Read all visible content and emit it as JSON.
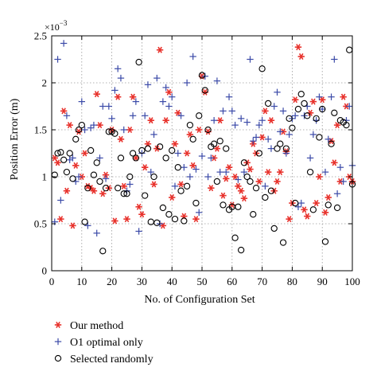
{
  "chart_data": {
    "type": "scatter",
    "title": "",
    "xlabel": "No. of Configuration Set",
    "ylabel": "Position Error (m)",
    "y_multiplier_label": "×10",
    "y_multiplier_exponent": "−3",
    "xlim": [
      0,
      100
    ],
    "ylim": [
      0,
      2.5
    ],
    "xticks": [
      "0",
      "10",
      "20",
      "30",
      "40",
      "50",
      "60",
      "70",
      "80",
      "90",
      "100"
    ],
    "yticks": [
      "0",
      "0.5",
      "1",
      "1.5",
      "2",
      "2.5"
    ],
    "grid": true,
    "legend_position": "bottom-left, below plot",
    "series": [
      {
        "name": "Our method",
        "marker": "asterisk",
        "color": "#e8322c",
        "x": [
          1,
          2,
          3,
          4,
          5,
          6,
          7,
          8,
          9,
          10,
          11,
          12,
          13,
          14,
          15,
          16,
          17,
          18,
          19,
          20,
          21,
          22,
          23,
          24,
          25,
          26,
          27,
          28,
          29,
          30,
          31,
          32,
          33,
          34,
          35,
          36,
          37,
          38,
          39,
          40,
          41,
          42,
          43,
          44,
          45,
          46,
          47,
          48,
          49,
          50,
          51,
          52,
          53,
          54,
          55,
          56,
          57,
          58,
          59,
          60,
          61,
          62,
          63,
          64,
          65,
          66,
          67,
          68,
          69,
          70,
          71,
          72,
          73,
          74,
          75,
          76,
          77,
          78,
          79,
          80,
          81,
          82,
          83,
          84,
          85,
          86,
          87,
          88,
          89,
          90,
          91,
          92,
          93,
          94,
          95,
          96,
          97,
          98,
          99,
          100
        ],
        "y": [
          1.2,
          1.15,
          0.55,
          1.7,
          0.85,
          1.55,
          0.48,
          1.12,
          1.48,
          1.0,
          1.25,
          0.9,
          0.88,
          0.85,
          1.88,
          1.55,
          0.82,
          1.02,
          0.88,
          1.5,
          0.53,
          1.85,
          1.4,
          0.9,
          0.55,
          1.5,
          1.85,
          1.2,
          0.68,
          0.6,
          1.1,
          1.35,
          1.6,
          0.92,
          1.3,
          2.35,
          0.48,
          1.6,
          1.9,
          0.78,
          1.35,
          1.68,
          0.92,
          0.58,
          1.25,
          1.45,
          1.12,
          0.55,
          1.5,
          2.07,
          1.9,
          1.48,
          0.88,
          1.2,
          1.3,
          1.6,
          0.8,
          0.98,
          1.1,
          0.7,
          1.0,
          0.9,
          0.85,
          0.77,
          1.15,
          1.08,
          1.35,
          1.25,
          0.95,
          1.42,
          1.7,
          1.05,
          1.6,
          0.85,
          0.95,
          1.05,
          1.48,
          1.27,
          0.55,
          0.72,
          1.82,
          2.38,
          2.28,
          0.65,
          0.58,
          1.68,
          1.8,
          0.72,
          1.0,
          1.82,
          0.62,
          0.78,
          1.38,
          1.15,
          1.55,
          0.95,
          1.85,
          1.75,
          1.0,
          0.95
        ]
      },
      {
        "name": "O1 optimal only",
        "marker": "plus",
        "color": "#3b4aa8",
        "x": [
          1,
          2,
          3,
          4,
          5,
          6,
          7,
          8,
          9,
          10,
          11,
          12,
          13,
          14,
          15,
          16,
          17,
          18,
          19,
          20,
          21,
          22,
          23,
          24,
          25,
          26,
          27,
          28,
          29,
          30,
          31,
          32,
          33,
          34,
          35,
          36,
          37,
          38,
          39,
          40,
          41,
          42,
          43,
          44,
          45,
          46,
          47,
          48,
          49,
          50,
          51,
          52,
          53,
          54,
          55,
          56,
          57,
          58,
          59,
          60,
          61,
          62,
          63,
          64,
          65,
          66,
          67,
          68,
          69,
          70,
          71,
          72,
          73,
          74,
          75,
          76,
          77,
          78,
          79,
          80,
          81,
          82,
          83,
          84,
          85,
          86,
          87,
          88,
          89,
          90,
          91,
          92,
          93,
          94,
          95,
          96,
          97,
          98,
          99,
          100
        ],
        "y": [
          0.52,
          2.25,
          0.75,
          2.42,
          1.65,
          1.18,
          1.2,
          0.95,
          1.0,
          1.8,
          1.5,
          0.48,
          1.52,
          1.55,
          0.4,
          1.2,
          1.75,
          0.98,
          1.75,
          1.62,
          1.92,
          2.15,
          2.05,
          1.5,
          0.85,
          0.92,
          1.65,
          1.8,
          0.42,
          1.25,
          1.65,
          1.98,
          1.05,
          1.45,
          2.05,
          0.5,
          1.8,
          1.95,
          1.75,
          1.85,
          0.9,
          1.25,
          1.65,
          1.1,
          2.0,
          1.0,
          2.28,
          1.08,
          0.62,
          1.22,
          2.07,
          1.0,
          1.2,
          1.6,
          2.02,
          1.05,
          1.7,
          1.05,
          1.85,
          1.7,
          1.55,
          0.97,
          1.62,
          1.05,
          1.58,
          2.25,
          1.38,
          1.42,
          1.55,
          1.6,
          0.9,
          1.4,
          1.3,
          1.75,
          1.9,
          1.48,
          1.7,
          1.25,
          1.45,
          1.62,
          1.65,
          0.68,
          0.72,
          1.65,
          1.75,
          1.2,
          1.45,
          1.6,
          1.85,
          1.72,
          1.05,
          1.4,
          1.85,
          2.25,
          0.82,
          1.1,
          0.95,
          1.6,
          1.75,
          1.12
        ]
      },
      {
        "name": "Selected randomly",
        "marker": "circle",
        "color": "#000000",
        "x": [
          1,
          2,
          3,
          4,
          5,
          6,
          7,
          8,
          9,
          10,
          11,
          12,
          13,
          14,
          15,
          16,
          17,
          18,
          19,
          20,
          21,
          22,
          23,
          24,
          25,
          26,
          27,
          28,
          29,
          30,
          31,
          32,
          33,
          34,
          35,
          36,
          37,
          38,
          39,
          40,
          41,
          42,
          43,
          44,
          45,
          46,
          47,
          48,
          49,
          50,
          51,
          52,
          53,
          54,
          55,
          56,
          57,
          58,
          59,
          60,
          61,
          62,
          63,
          64,
          65,
          66,
          67,
          68,
          69,
          70,
          71,
          72,
          73,
          74,
          75,
          76,
          77,
          78,
          79,
          80,
          81,
          82,
          83,
          84,
          85,
          86,
          87,
          88,
          89,
          90,
          91,
          92,
          93,
          94,
          95,
          96,
          97,
          98,
          99,
          100
        ],
        "y": [
          1.02,
          1.25,
          1.26,
          1.18,
          1.05,
          1.25,
          0.98,
          1.4,
          1.5,
          1.55,
          0.52,
          0.88,
          1.28,
          1.02,
          1.15,
          0.95,
          0.21,
          0.88,
          1.48,
          1.48,
          1.46,
          0.88,
          1.2,
          0.82,
          0.82,
          1.0,
          1.25,
          1.2,
          2.22,
          1.28,
          0.8,
          1.3,
          0.52,
          1.0,
          0.51,
          1.32,
          0.67,
          1.2,
          0.6,
          1.28,
          0.55,
          1.1,
          0.85,
          0.53,
          0.9,
          1.55,
          1.4,
          0.72,
          1.65,
          2.08,
          1.92,
          1.5,
          1.32,
          1.35,
          0.95,
          1.38,
          0.7,
          1.3,
          0.65,
          0.68,
          0.35,
          0.68,
          0.22,
          1.15,
          1.0,
          0.95,
          0.6,
          0.88,
          1.25,
          2.15,
          0.78,
          1.78,
          0.85,
          0.45,
          1.3,
          1.35,
          0.3,
          1.3,
          1.62,
          1.52,
          0.72,
          1.72,
          1.88,
          1.78,
          1.65,
          1.05,
          0.65,
          1.62,
          1.42,
          1.72,
          0.31,
          0.7,
          1.35,
          1.68,
          0.67,
          1.6,
          1.58,
          1.55,
          2.35,
          0.92
        ]
      }
    ]
  }
}
